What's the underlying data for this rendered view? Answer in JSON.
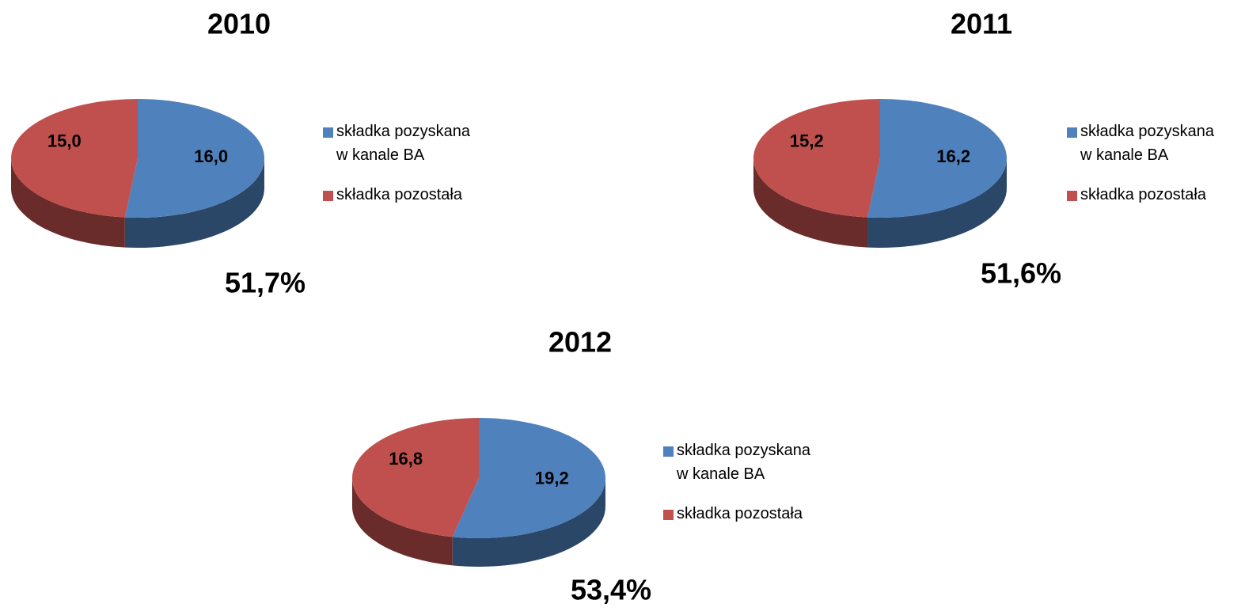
{
  "chart_data": [
    {
      "type": "pie",
      "title": "2010",
      "categories": [
        "składka pozyskana w kanale BA",
        "składka pozostała"
      ],
      "values": [
        16.0,
        15.0
      ],
      "value_labels": [
        "16,0",
        "15,0"
      ],
      "colors": [
        "#4f81bd",
        "#c0504d"
      ],
      "annotation": "51,7%"
    },
    {
      "type": "pie",
      "title": "2011",
      "categories": [
        "składka pozyskana w kanale BA",
        "składka pozostała"
      ],
      "values": [
        16.2,
        15.2
      ],
      "value_labels": [
        "16,2",
        "15,2"
      ],
      "colors": [
        "#4f81bd",
        "#c0504d"
      ],
      "annotation": "51,6%"
    },
    {
      "type": "pie",
      "title": "2012",
      "categories": [
        "składka pozyskana w kanale BA",
        "składka pozostała"
      ],
      "values": [
        19.2,
        16.8
      ],
      "value_labels": [
        "19,2",
        "16,8"
      ],
      "colors": [
        "#4f81bd",
        "#c0504d"
      ],
      "annotation": "53,4%"
    }
  ]
}
